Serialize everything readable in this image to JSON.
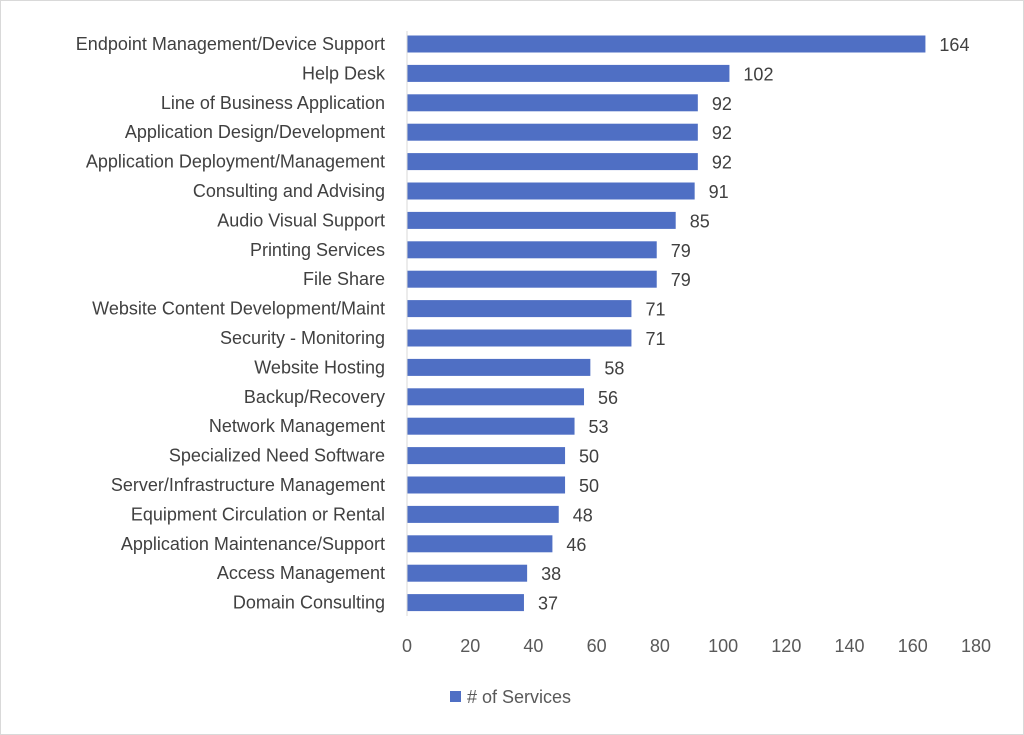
{
  "chart_data": {
    "type": "bar",
    "orientation": "horizontal",
    "categories": [
      "Endpoint Management/Device Support",
      "Help Desk",
      "Line of Business Application",
      "Application Design/Development",
      "Application Deployment/Management",
      "Consulting and Advising",
      "Audio Visual Support",
      "Printing Services",
      "File Share",
      "Website Content Development/Maint",
      "Security - Monitoring",
      "Website Hosting",
      "Backup/Recovery",
      "Network Management",
      "Specialized Need Software",
      "Server/Infrastructure Management",
      "Equipment Circulation or Rental",
      "Application Maintenance/Support",
      "Access Management",
      "Domain Consulting"
    ],
    "series": [
      {
        "name": "# of Services",
        "color": "#4f6fc4",
        "values": [
          164,
          102,
          92,
          92,
          92,
          91,
          85,
          79,
          79,
          71,
          71,
          58,
          56,
          53,
          50,
          50,
          48,
          46,
          38,
          37
        ]
      }
    ],
    "xlim": [
      0,
      180
    ],
    "xticks": [
      0,
      20,
      40,
      60,
      80,
      100,
      120,
      140,
      160,
      180
    ],
    "grid": false,
    "legend_position": "bottom",
    "data_labels": true
  }
}
